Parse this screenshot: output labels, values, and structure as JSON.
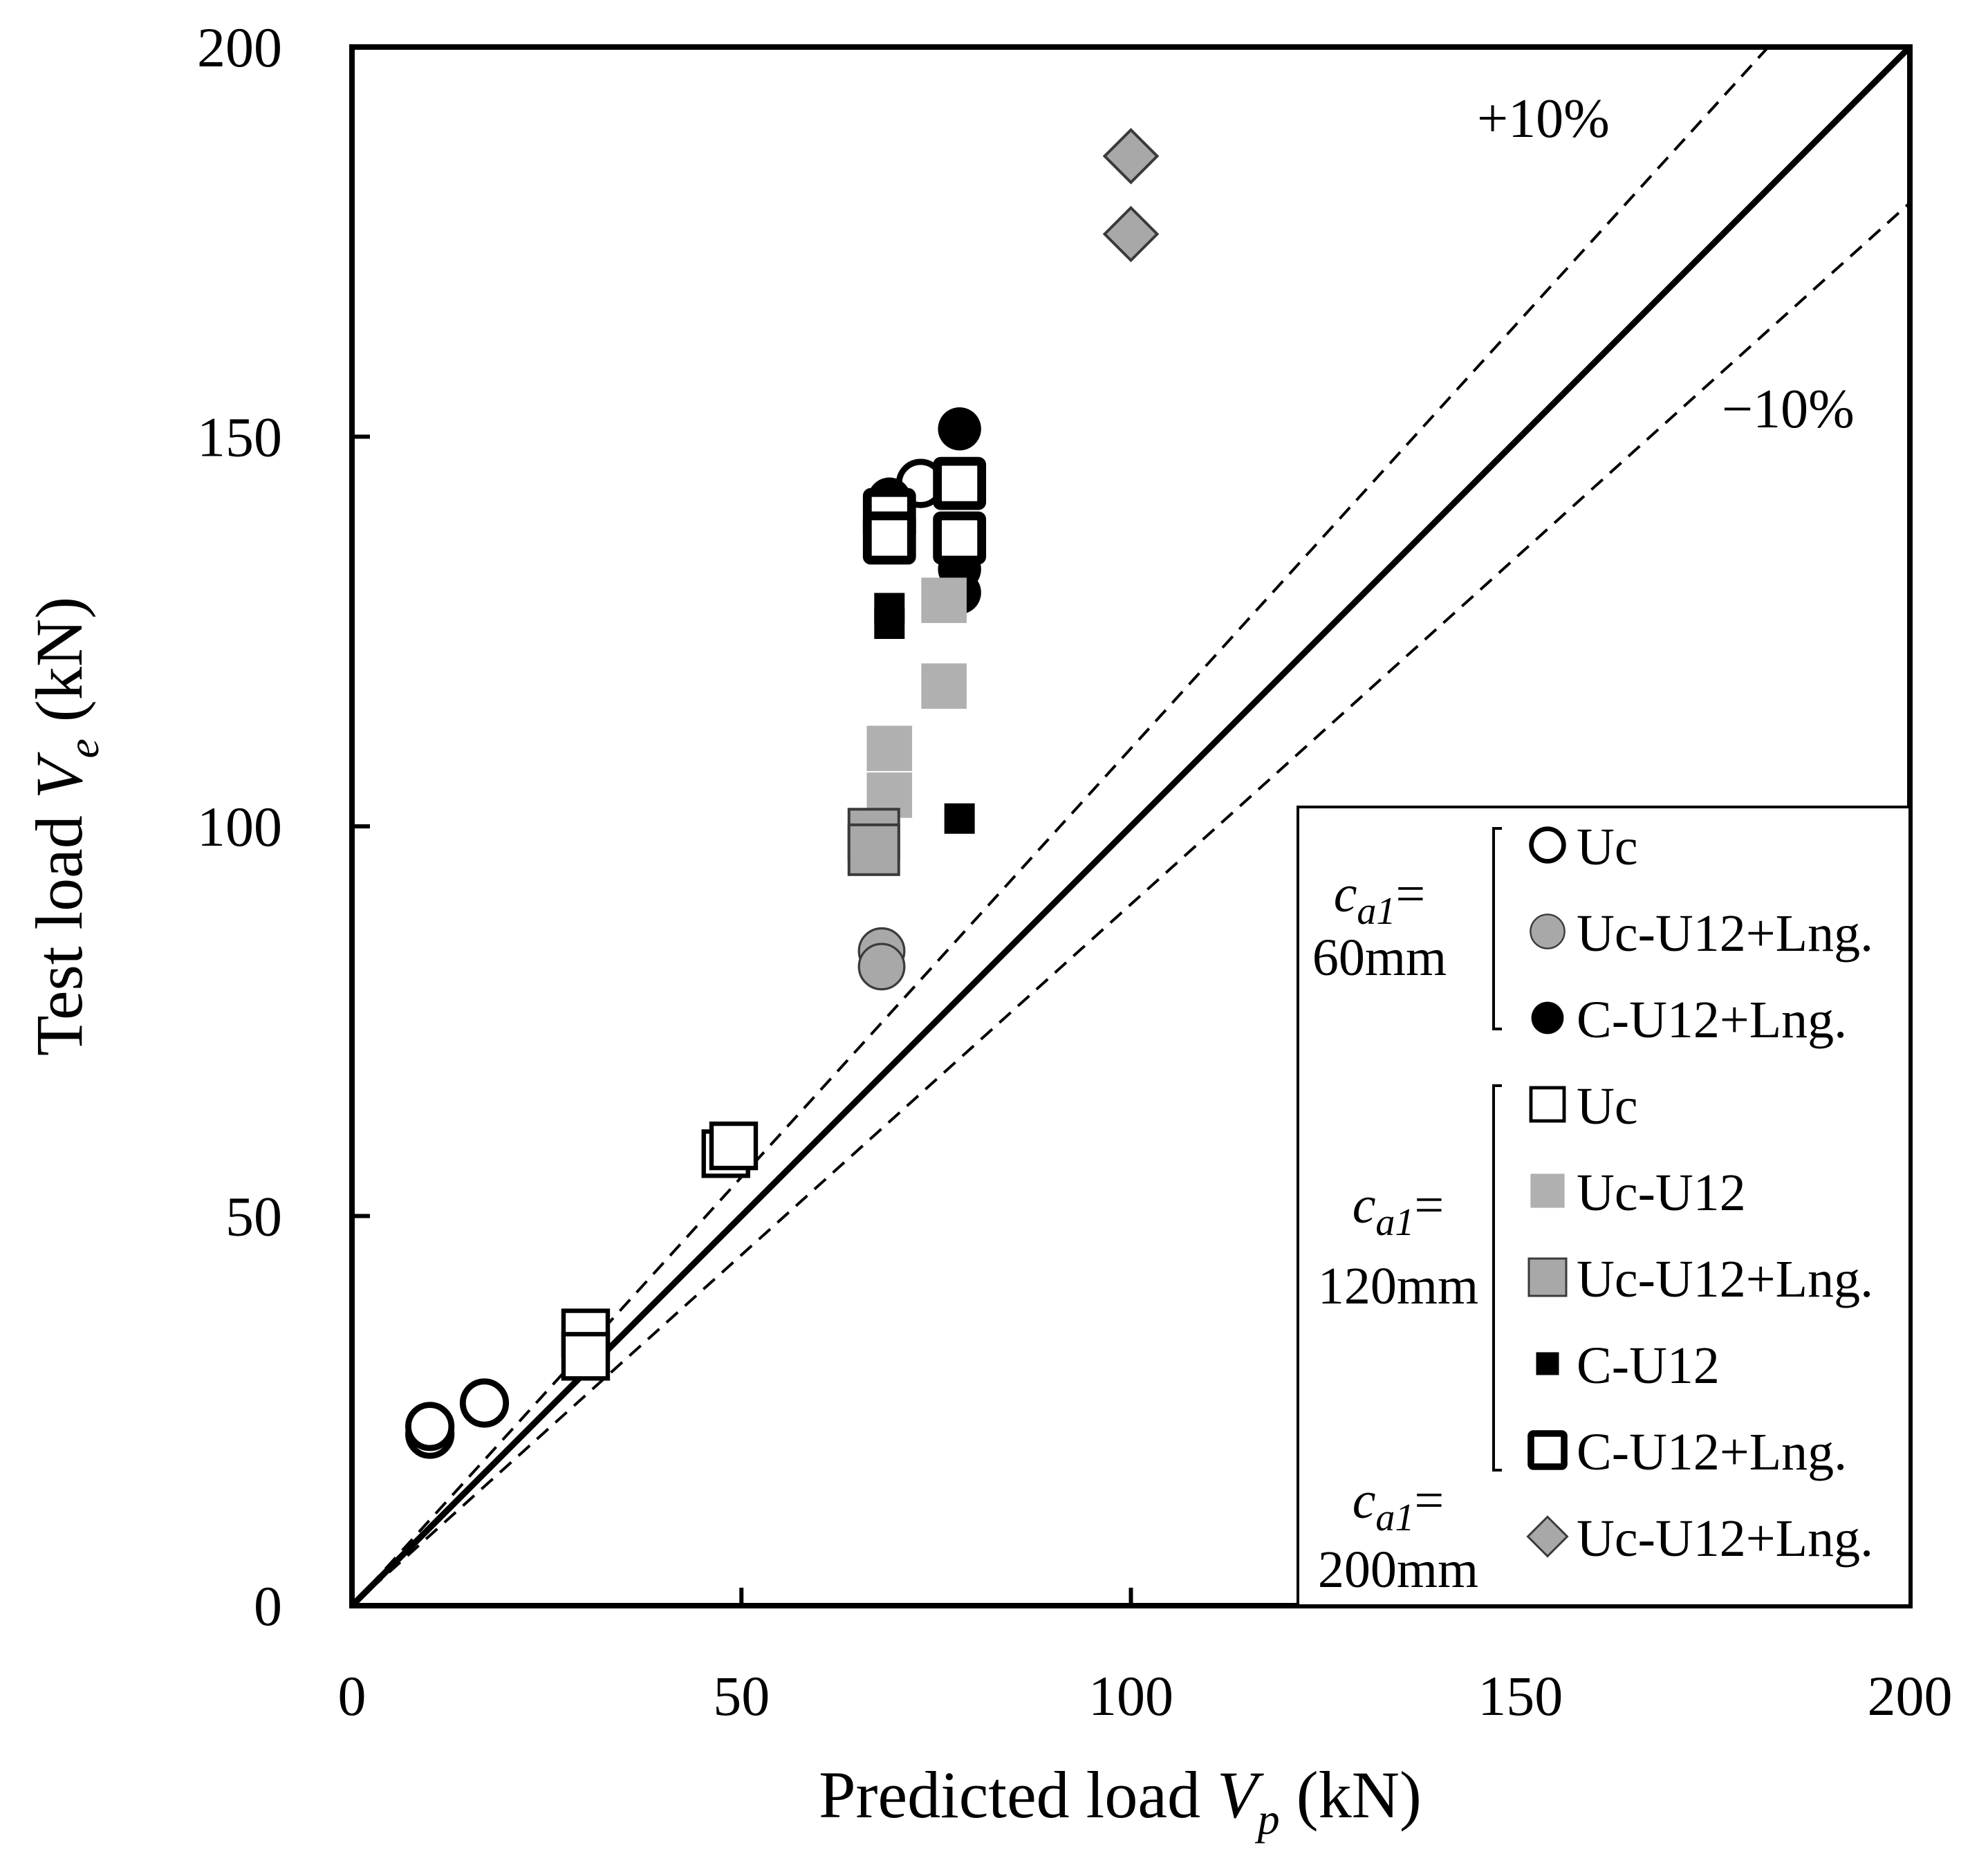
{
  "chart_data": {
    "type": "scatter",
    "x_axis": {
      "label_prefix": "Predicted load ",
      "label_var": "V",
      "label_sub": "p",
      "label_suffix": " (kN)",
      "range": [
        0,
        200
      ],
      "ticks": [
        "0",
        "50",
        "100",
        "150",
        "200"
      ]
    },
    "y_axis": {
      "label_prefix": "Test load ",
      "label_var": "V",
      "label_sub": "e",
      "label_suffix": " (kN)",
      "range": [
        0,
        200
      ],
      "ticks": [
        "0",
        "50",
        "100",
        "150",
        "200"
      ]
    },
    "grid": false,
    "reference_lines": [
      {
        "label": "",
        "slope": 1.0,
        "style": "solid"
      },
      {
        "label": "+10%",
        "slope": 1.1,
        "style": "dashed"
      },
      {
        "label": "−10%",
        "slope": 0.9,
        "style": "dashed"
      }
    ],
    "legend_placement": "bottom-right",
    "groups": [
      {
        "label_var": "c",
        "label_sub": "a1",
        "label_eq": "=",
        "label_value": "60mm"
      },
      {
        "label_var": "c",
        "label_sub": "a1",
        "label_eq": "=",
        "label_value": "120mm"
      },
      {
        "label_var": "c",
        "label_sub": "a1",
        "label_eq": "=",
        "label_value": "200mm"
      }
    ],
    "series": [
      {
        "name": "Uc",
        "group": 0,
        "marker": "circle-open",
        "points": [
          [
            10,
            22
          ],
          [
            10,
            23
          ],
          [
            17,
            26
          ],
          [
            73,
            144
          ]
        ]
      },
      {
        "name": "Uc-U12+Lng.",
        "group": 0,
        "marker": "circle-gray",
        "points": [
          [
            68,
            84
          ],
          [
            68,
            82
          ]
        ]
      },
      {
        "name": "C-U12+Lng.",
        "group": 0,
        "marker": "circle-black",
        "points": [
          [
            69,
            142
          ],
          [
            78,
            151
          ],
          [
            78,
            133
          ],
          [
            78,
            130
          ]
        ]
      },
      {
        "name": "Uc",
        "group": 1,
        "marker": "square-open",
        "points": [
          [
            30,
            35
          ],
          [
            30,
            32
          ],
          [
            48,
            58
          ],
          [
            49,
            59
          ]
        ]
      },
      {
        "name": "Uc-U12",
        "group": 1,
        "marker": "square-lightgray",
        "points": [
          [
            69,
            110
          ],
          [
            69,
            104
          ],
          [
            76,
            129
          ],
          [
            76,
            118
          ]
        ]
      },
      {
        "name": "Uc-U12+Lng.",
        "group": 1,
        "marker": "square-gray",
        "points": [
          [
            67,
            99
          ],
          [
            67,
            97
          ]
        ]
      },
      {
        "name": "C-U12",
        "group": 1,
        "marker": "square-black",
        "points": [
          [
            69,
            128
          ],
          [
            69,
            126
          ],
          [
            78,
            101
          ]
        ]
      },
      {
        "name": "C-U12+Lng.",
        "group": 1,
        "marker": "square-bold",
        "points": [
          [
            69,
            140
          ],
          [
            69,
            137
          ],
          [
            78,
            144
          ],
          [
            78,
            137
          ]
        ]
      },
      {
        "name": "Uc-U12+Lng.",
        "group": 2,
        "marker": "diamond-gray",
        "points": [
          [
            100,
            186
          ],
          [
            100,
            176
          ]
        ]
      }
    ]
  },
  "colors": {
    "black": "#000000",
    "gray": "#a8a8a8",
    "light_gray": "#b0b0b0",
    "marker_outline_gray": "#3a3a3a"
  }
}
